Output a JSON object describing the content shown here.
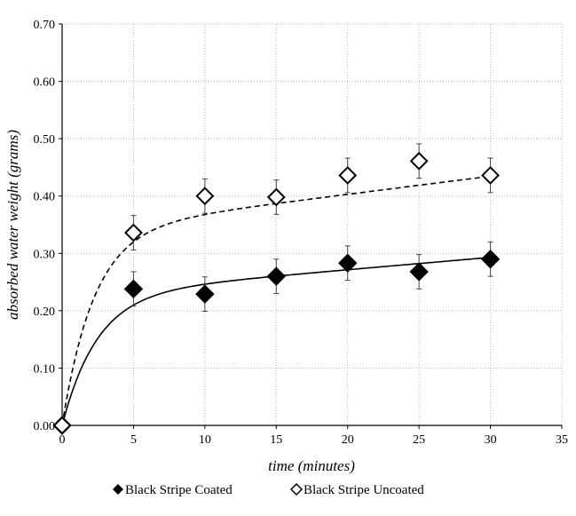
{
  "chart_data": {
    "type": "scatter",
    "title": "",
    "xlabel": "time (minutes)",
    "ylabel": "absorbed water weight (grams)",
    "xlim": [
      0,
      35
    ],
    "ylim": [
      0,
      0.7
    ],
    "x_ticks": [
      "0",
      "5",
      "10",
      "15",
      "20",
      "25",
      "30",
      "35"
    ],
    "y_ticks": [
      "0.00",
      "0.10",
      "0.20",
      "0.30",
      "0.40",
      "0.50",
      "0.60",
      "0.70"
    ],
    "grid": true,
    "legend_placement": "bottom",
    "series": [
      {
        "name": "Black Stripe Coated",
        "marker": "filled-diamond",
        "fit_line": "solid",
        "x": [
          0,
          5,
          10,
          15,
          20,
          25,
          30
        ],
        "y": [
          0.0,
          0.238,
          0.229,
          0.26,
          0.283,
          0.268,
          0.29
        ],
        "error": [
          0,
          0.03,
          0.03,
          0.03,
          0.03,
          0.03,
          0.03
        ]
      },
      {
        "name": "Black Stripe Uncoated",
        "marker": "open-diamond",
        "fit_line": "dashed",
        "x": [
          0,
          5,
          10,
          15,
          20,
          25,
          30
        ],
        "y": [
          0.0,
          0.336,
          0.4,
          0.398,
          0.436,
          0.461,
          0.436
        ],
        "error": [
          0,
          0.03,
          0.03,
          0.03,
          0.03,
          0.03,
          0.03
        ]
      }
    ]
  }
}
